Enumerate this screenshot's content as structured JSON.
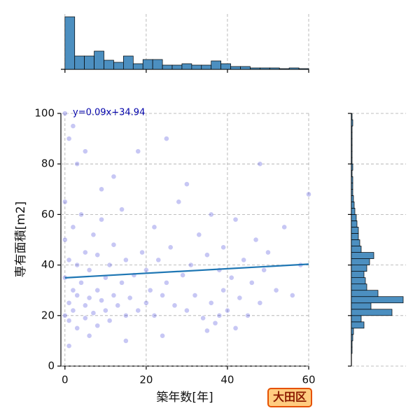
{
  "chart_data": {
    "type": "scatter",
    "x_label": "築年数[年]",
    "y_label": "専有面積[m2]",
    "annotation": "y=0.09x+34.94",
    "badge": "大田区",
    "xlim": [
      -1,
      60
    ],
    "xticks": [
      0,
      20,
      40,
      60
    ],
    "ylim": [
      0,
      100
    ],
    "yticks": [
      0,
      20,
      40,
      60,
      80,
      100
    ],
    "grid": true,
    "series": [
      {
        "color": "#0000cd",
        "x": [
          0,
          0,
          0,
          0,
          1,
          1,
          1,
          1,
          2,
          2,
          2,
          3,
          3,
          3,
          4,
          4,
          5,
          5,
          5,
          6,
          6,
          7,
          7,
          8,
          8,
          8,
          9,
          9,
          10,
          10,
          11,
          11,
          12,
          12,
          13,
          14,
          14,
          15,
          15,
          16,
          17,
          18,
          19,
          20,
          20,
          21,
          22,
          22,
          23,
          24,
          25,
          26,
          27,
          28,
          29,
          30,
          31,
          32,
          33,
          34,
          35,
          36,
          37,
          38,
          38,
          39,
          39,
          40,
          41,
          42,
          43,
          44,
          45,
          46,
          47,
          48,
          49,
          50,
          52,
          54,
          56,
          58,
          60,
          3,
          6,
          9,
          12,
          18,
          24,
          30,
          36,
          42,
          48,
          2,
          5,
          15,
          25,
          35,
          1,
          0
        ],
        "y": [
          20,
          35,
          50,
          65,
          25,
          42,
          18,
          90,
          30,
          22,
          55,
          28,
          40,
          15,
          33,
          60,
          24,
          45,
          19,
          38,
          27,
          21,
          52,
          30,
          44,
          16,
          26,
          70,
          35,
          22,
          40,
          18,
          28,
          48,
          24,
          33,
          62,
          20,
          42,
          27,
          36,
          22,
          45,
          25,
          38,
          30,
          20,
          55,
          42,
          28,
          33,
          47,
          24,
          65,
          36,
          22,
          40,
          28,
          52,
          19,
          44,
          25,
          17,
          38,
          20,
          30,
          47,
          22,
          35,
          58,
          27,
          42,
          20,
          33,
          50,
          25,
          38,
          45,
          30,
          55,
          28,
          40,
          68,
          80,
          12,
          58,
          75,
          85,
          12,
          72,
          60,
          15,
          80,
          95,
          85,
          10,
          90,
          14,
          8,
          100
        ]
      }
    ],
    "regression": {
      "color": "#1f77b4",
      "x": [
        0,
        60
      ],
      "y": [
        34.94,
        40.34
      ]
    },
    "x_histogram": {
      "color": "#4c8fc0",
      "bins": [
        0,
        2.4,
        4.8,
        7.2,
        9.6,
        12,
        14.4,
        16.8,
        19.2,
        21.6,
        24,
        26.4,
        28.8,
        31.2,
        33.6,
        36,
        38.4,
        40.8,
        43.2,
        45.6,
        48,
        50.4,
        52.8,
        55.2,
        57.6,
        60
      ],
      "counts": [
        75,
        19,
        19,
        26,
        13,
        10,
        19,
        8,
        14,
        14,
        6,
        6,
        8,
        6,
        6,
        12,
        8,
        4,
        4,
        2,
        2,
        2,
        1,
        2,
        1
      ]
    },
    "y_histogram": {
      "color": "#4c8fc0",
      "bins": [
        0,
        2.5,
        5,
        7.5,
        10,
        12.5,
        15,
        17.5,
        20,
        22.5,
        25,
        27.5,
        30,
        32.5,
        35,
        37.5,
        40,
        42.5,
        45,
        47.5,
        50,
        52.5,
        55,
        57.5,
        60,
        62.5,
        65,
        67.5,
        70,
        72.5,
        75,
        77.5,
        80,
        82.5,
        85,
        87.5,
        90,
        92.5,
        95,
        97.5,
        100
      ],
      "counts": [
        0,
        0,
        1,
        1,
        2,
        3,
        18,
        14,
        58,
        28,
        74,
        38,
        22,
        20,
        18,
        22,
        26,
        32,
        14,
        12,
        10,
        10,
        8,
        7,
        5,
        4,
        3,
        2,
        2,
        2,
        1,
        2,
        1,
        1,
        1,
        1,
        1,
        1,
        2,
        1
      ]
    }
  }
}
